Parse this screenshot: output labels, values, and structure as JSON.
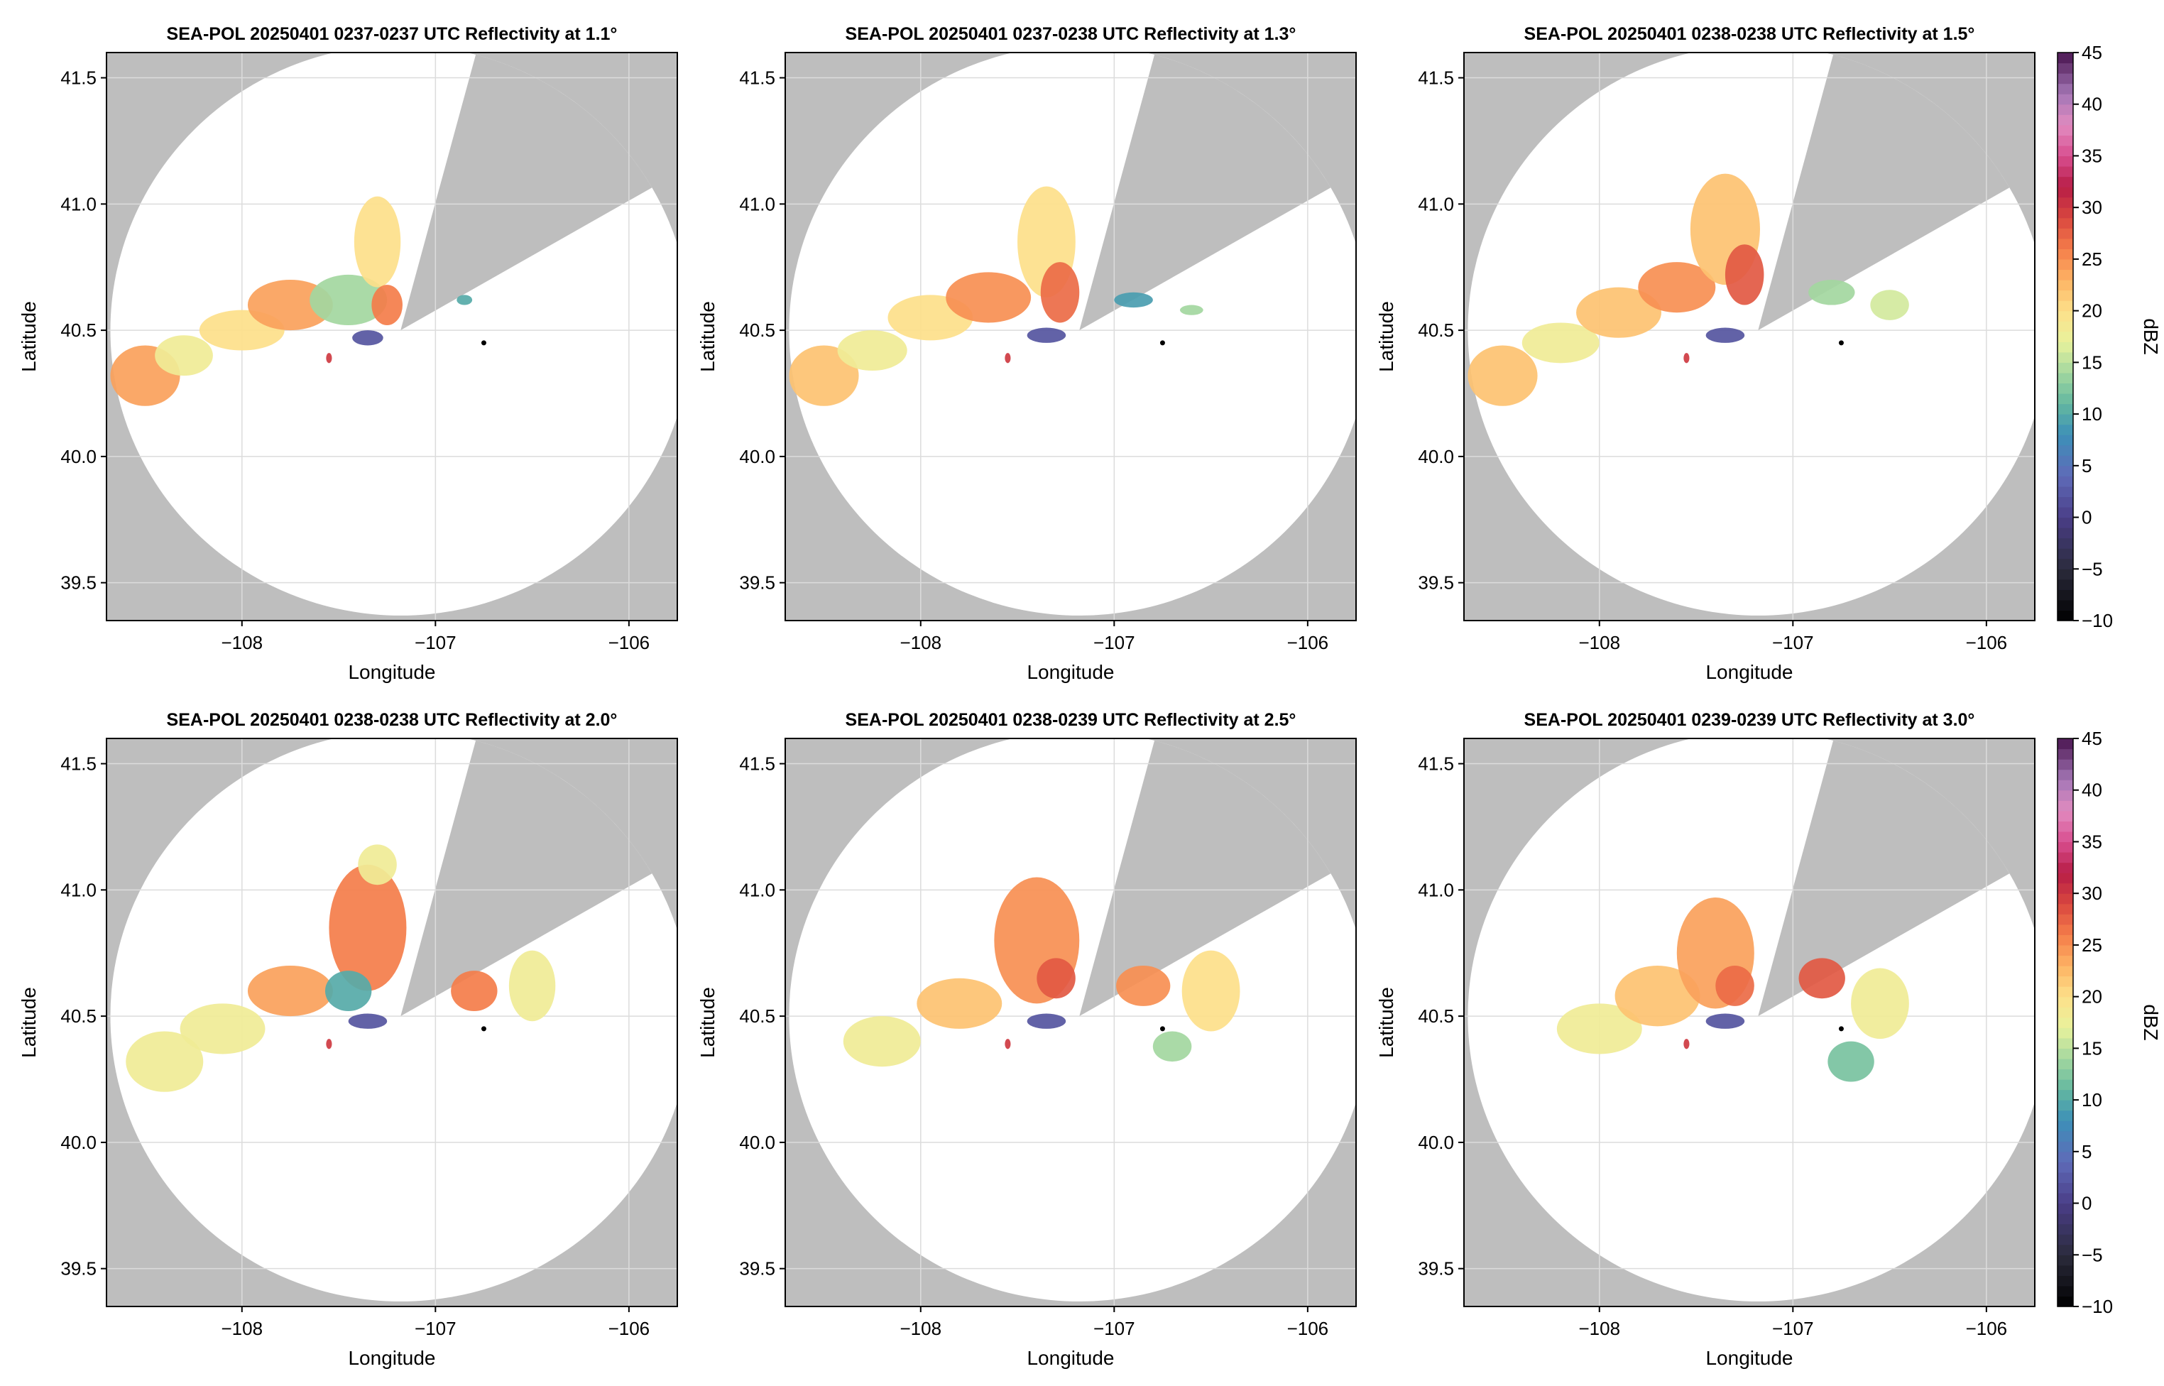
{
  "chart_data": {
    "type": "radar-ppi-panels",
    "colors": {
      "outside": "#bebebe",
      "grid": "#dcdcdc",
      "radar_marker": "#000000"
    },
    "axes": {
      "xlabel": "Longitude",
      "ylabel": "Latitude",
      "xlim": [
        -108.7,
        -105.75
      ],
      "ylim": [
        39.35,
        41.6
      ],
      "xticks": [
        -108,
        -107,
        -106
      ],
      "xtick_labels": [
        "−108",
        "−107",
        "−106"
      ],
      "yticks": [
        39.5,
        40.0,
        40.5,
        41.0,
        41.5
      ],
      "ytick_labels": [
        "39.5",
        "40.0",
        "40.5",
        "41.0",
        "41.5"
      ]
    },
    "radar": {
      "lon": -107.18,
      "lat": 40.5,
      "range_lon": 1.5,
      "range_lat": 1.13
    },
    "blocked_sector": {
      "az1": 15,
      "az2": 60
    },
    "site_marker": {
      "lon": -106.75,
      "lat": 40.45
    },
    "colorbar": {
      "label": "dBZ",
      "min": -10,
      "max": 45,
      "ticks": [
        -10,
        -5,
        0,
        5,
        10,
        15,
        20,
        25,
        30,
        35,
        40,
        45
      ],
      "tick_labels": [
        "−10",
        "−5",
        "0",
        "5",
        "10",
        "15",
        "20",
        "25",
        "30",
        "35",
        "40",
        "45"
      ],
      "stops": [
        {
          "v": -10,
          "c": "#000000"
        },
        {
          "v": -5,
          "c": "#2b2b3c"
        },
        {
          "v": 0,
          "c": "#4a3e88"
        },
        {
          "v": 4,
          "c": "#5f6bb8"
        },
        {
          "v": 8,
          "c": "#3d8fb8"
        },
        {
          "v": 11,
          "c": "#63b8a0"
        },
        {
          "v": 14,
          "c": "#a3d79f"
        },
        {
          "v": 17,
          "c": "#e9f29c"
        },
        {
          "v": 20,
          "c": "#fde08a"
        },
        {
          "v": 23,
          "c": "#fdb364"
        },
        {
          "v": 26,
          "c": "#f47d4a"
        },
        {
          "v": 29,
          "c": "#d9473f"
        },
        {
          "v": 32,
          "c": "#b71d46"
        },
        {
          "v": 35,
          "c": "#d94e8f"
        },
        {
          "v": 38,
          "c": "#e18bc0"
        },
        {
          "v": 41,
          "c": "#a477b6"
        },
        {
          "v": 45,
          "c": "#4a1550"
        }
      ]
    },
    "panels": [
      {
        "title": "SEA-POL 20250401 0237-0237 UTC Reflectivity at 1.1°",
        "elevation_deg": 1.1,
        "echoes": [
          {
            "lon": -108.5,
            "lat": 40.32,
            "rx": 0.18,
            "ry": 0.12,
            "dbz": 24
          },
          {
            "lon": -108.3,
            "lat": 40.4,
            "rx": 0.15,
            "ry": 0.08,
            "dbz": 18
          },
          {
            "lon": -108.0,
            "lat": 40.5,
            "rx": 0.22,
            "ry": 0.08,
            "dbz": 20
          },
          {
            "lon": -107.75,
            "lat": 40.6,
            "rx": 0.22,
            "ry": 0.1,
            "dbz": 24
          },
          {
            "lon": -107.45,
            "lat": 40.62,
            "rx": 0.2,
            "ry": 0.1,
            "dbz": 14
          },
          {
            "lon": -107.3,
            "lat": 40.85,
            "rx": 0.12,
            "ry": 0.18,
            "dbz": 20
          },
          {
            "lon": -107.25,
            "lat": 40.6,
            "rx": 0.08,
            "ry": 0.08,
            "dbz": 26
          },
          {
            "lon": -107.35,
            "lat": 40.47,
            "rx": 0.08,
            "ry": 0.03,
            "dbz": 2
          },
          {
            "lon": -107.55,
            "lat": 40.39,
            "rx": 0.015,
            "ry": 0.02,
            "dbz": 30
          },
          {
            "lon": -106.85,
            "lat": 40.62,
            "rx": 0.04,
            "ry": 0.02,
            "dbz": 10
          }
        ]
      },
      {
        "title": "SEA-POL 20250401 0237-0238 UTC Reflectivity at 1.3°",
        "elevation_deg": 1.3,
        "echoes": [
          {
            "lon": -108.5,
            "lat": 40.32,
            "rx": 0.18,
            "ry": 0.12,
            "dbz": 22
          },
          {
            "lon": -108.25,
            "lat": 40.42,
            "rx": 0.18,
            "ry": 0.08,
            "dbz": 18
          },
          {
            "lon": -107.95,
            "lat": 40.55,
            "rx": 0.22,
            "ry": 0.09,
            "dbz": 20
          },
          {
            "lon": -107.65,
            "lat": 40.63,
            "rx": 0.22,
            "ry": 0.1,
            "dbz": 25
          },
          {
            "lon": -107.35,
            "lat": 40.85,
            "rx": 0.15,
            "ry": 0.22,
            "dbz": 20
          },
          {
            "lon": -107.28,
            "lat": 40.65,
            "rx": 0.1,
            "ry": 0.12,
            "dbz": 27
          },
          {
            "lon": -107.35,
            "lat": 40.48,
            "rx": 0.1,
            "ry": 0.03,
            "dbz": 2
          },
          {
            "lon": -107.55,
            "lat": 40.39,
            "rx": 0.015,
            "ry": 0.02,
            "dbz": 30
          },
          {
            "lon": -106.9,
            "lat": 40.62,
            "rx": 0.1,
            "ry": 0.03,
            "dbz": 9
          },
          {
            "lon": -106.6,
            "lat": 40.58,
            "rx": 0.06,
            "ry": 0.02,
            "dbz": 14
          }
        ]
      },
      {
        "title": "SEA-POL 20250401 0238-0238 UTC Reflectivity at 1.5°",
        "elevation_deg": 1.5,
        "echoes": [
          {
            "lon": -108.5,
            "lat": 40.32,
            "rx": 0.18,
            "ry": 0.12,
            "dbz": 22
          },
          {
            "lon": -108.2,
            "lat": 40.45,
            "rx": 0.2,
            "ry": 0.08,
            "dbz": 18
          },
          {
            "lon": -107.9,
            "lat": 40.57,
            "rx": 0.22,
            "ry": 0.1,
            "dbz": 22
          },
          {
            "lon": -107.6,
            "lat": 40.67,
            "rx": 0.2,
            "ry": 0.1,
            "dbz": 25
          },
          {
            "lon": -107.35,
            "lat": 40.9,
            "rx": 0.18,
            "ry": 0.22,
            "dbz": 22
          },
          {
            "lon": -107.25,
            "lat": 40.72,
            "rx": 0.1,
            "ry": 0.12,
            "dbz": 28
          },
          {
            "lon": -107.35,
            "lat": 40.48,
            "rx": 0.1,
            "ry": 0.03,
            "dbz": 2
          },
          {
            "lon": -107.55,
            "lat": 40.39,
            "rx": 0.015,
            "ry": 0.02,
            "dbz": 30
          },
          {
            "lon": -106.8,
            "lat": 40.65,
            "rx": 0.12,
            "ry": 0.05,
            "dbz": 14
          },
          {
            "lon": -106.5,
            "lat": 40.6,
            "rx": 0.1,
            "ry": 0.06,
            "dbz": 16
          }
        ]
      },
      {
        "title": "SEA-POL 20250401 0238-0238 UTC Reflectivity at 2.0°",
        "elevation_deg": 2.0,
        "echoes": [
          {
            "lon": -108.4,
            "lat": 40.32,
            "rx": 0.2,
            "ry": 0.12,
            "dbz": 18
          },
          {
            "lon": -108.1,
            "lat": 40.45,
            "rx": 0.22,
            "ry": 0.1,
            "dbz": 18
          },
          {
            "lon": -107.75,
            "lat": 40.6,
            "rx": 0.22,
            "ry": 0.1,
            "dbz": 24
          },
          {
            "lon": -107.35,
            "lat": 40.85,
            "rx": 0.2,
            "ry": 0.25,
            "dbz": 26
          },
          {
            "lon": -107.45,
            "lat": 40.6,
            "rx": 0.12,
            "ry": 0.08,
            "dbz": 10
          },
          {
            "lon": -107.35,
            "lat": 40.48,
            "rx": 0.1,
            "ry": 0.03,
            "dbz": 2
          },
          {
            "lon": -107.55,
            "lat": 40.39,
            "rx": 0.015,
            "ry": 0.02,
            "dbz": 30
          },
          {
            "lon": -106.8,
            "lat": 40.6,
            "rx": 0.12,
            "ry": 0.08,
            "dbz": 26
          },
          {
            "lon": -106.5,
            "lat": 40.62,
            "rx": 0.12,
            "ry": 0.14,
            "dbz": 18
          },
          {
            "lon": -107.3,
            "lat": 41.1,
            "rx": 0.1,
            "ry": 0.08,
            "dbz": 18
          }
        ]
      },
      {
        "title": "SEA-POL 20250401 0238-0239 UTC Reflectivity at 2.5°",
        "elevation_deg": 2.5,
        "echoes": [
          {
            "lon": -108.2,
            "lat": 40.4,
            "rx": 0.2,
            "ry": 0.1,
            "dbz": 18
          },
          {
            "lon": -107.8,
            "lat": 40.55,
            "rx": 0.22,
            "ry": 0.1,
            "dbz": 22
          },
          {
            "lon": -107.4,
            "lat": 40.8,
            "rx": 0.22,
            "ry": 0.25,
            "dbz": 25
          },
          {
            "lon": -107.3,
            "lat": 40.65,
            "rx": 0.1,
            "ry": 0.08,
            "dbz": 28
          },
          {
            "lon": -107.35,
            "lat": 40.48,
            "rx": 0.1,
            "ry": 0.03,
            "dbz": 2
          },
          {
            "lon": -107.55,
            "lat": 40.39,
            "rx": 0.015,
            "ry": 0.02,
            "dbz": 30
          },
          {
            "lon": -106.85,
            "lat": 40.62,
            "rx": 0.14,
            "ry": 0.08,
            "dbz": 25
          },
          {
            "lon": -106.5,
            "lat": 40.6,
            "rx": 0.15,
            "ry": 0.16,
            "dbz": 20
          },
          {
            "lon": -106.7,
            "lat": 40.38,
            "rx": 0.1,
            "ry": 0.06,
            "dbz": 14
          }
        ]
      },
      {
        "title": "SEA-POL 20250401 0239-0239 UTC Reflectivity at 3.0°",
        "elevation_deg": 3.0,
        "echoes": [
          {
            "lon": -108.0,
            "lat": 40.45,
            "rx": 0.22,
            "ry": 0.1,
            "dbz": 18
          },
          {
            "lon": -107.7,
            "lat": 40.58,
            "rx": 0.22,
            "ry": 0.12,
            "dbz": 22
          },
          {
            "lon": -107.4,
            "lat": 40.75,
            "rx": 0.2,
            "ry": 0.22,
            "dbz": 24
          },
          {
            "lon": -107.3,
            "lat": 40.62,
            "rx": 0.1,
            "ry": 0.08,
            "dbz": 27
          },
          {
            "lon": -107.35,
            "lat": 40.48,
            "rx": 0.1,
            "ry": 0.03,
            "dbz": 2
          },
          {
            "lon": -107.55,
            "lat": 40.39,
            "rx": 0.015,
            "ry": 0.02,
            "dbz": 30
          },
          {
            "lon": -106.85,
            "lat": 40.65,
            "rx": 0.12,
            "ry": 0.08,
            "dbz": 28
          },
          {
            "lon": -106.55,
            "lat": 40.55,
            "rx": 0.15,
            "ry": 0.14,
            "dbz": 18
          },
          {
            "lon": -106.7,
            "lat": 40.32,
            "rx": 0.12,
            "ry": 0.08,
            "dbz": 12
          }
        ]
      }
    ]
  }
}
